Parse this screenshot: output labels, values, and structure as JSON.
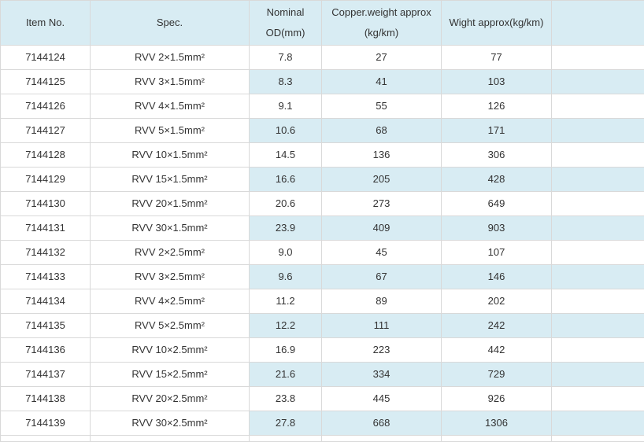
{
  "chart_data": {
    "type": "table",
    "columns": [
      {
        "id": "item_no",
        "line1": "Item No.",
        "line2": ""
      },
      {
        "id": "spec",
        "line1": "Spec.",
        "line2": ""
      },
      {
        "id": "nominal_od",
        "line1": "Nominal",
        "line2": "OD(mm)"
      },
      {
        "id": "copper_weight",
        "line1": "Copper.weight approx",
        "line2": "(kg/km)"
      },
      {
        "id": "weight",
        "line1": "Wight approx(kg/km)",
        "line2": ""
      },
      {
        "id": "blank",
        "line1": "",
        "line2": ""
      }
    ],
    "rows": [
      [
        "7144124",
        "RVV 2×1.5mm²",
        "7.8",
        "27",
        "77",
        ""
      ],
      [
        "7144125",
        "RVV 3×1.5mm²",
        "8.3",
        "41",
        "103",
        ""
      ],
      [
        "7144126",
        "RVV 4×1.5mm²",
        "9.1",
        "55",
        "126",
        ""
      ],
      [
        "7144127",
        "RVV 5×1.5mm²",
        "10.6",
        "68",
        "171",
        ""
      ],
      [
        "7144128",
        "RVV 10×1.5mm²",
        "14.5",
        "136",
        "306",
        ""
      ],
      [
        "7144129",
        "RVV 15×1.5mm²",
        "16.6",
        "205",
        "428",
        ""
      ],
      [
        "7144130",
        "RVV 20×1.5mm²",
        "20.6",
        "273",
        "649",
        ""
      ],
      [
        "7144131",
        "RVV 30×1.5mm²",
        "23.9",
        "409",
        "903",
        ""
      ],
      [
        "7144132",
        "RVV 2×2.5mm²",
        "9.0",
        "45",
        "107",
        ""
      ],
      [
        "7144133",
        "RVV 3×2.5mm²",
        "9.6",
        "67",
        "146",
        ""
      ],
      [
        "7144134",
        "RVV 4×2.5mm²",
        "11.2",
        "89",
        "202",
        ""
      ],
      [
        "7144135",
        "RVV 5×2.5mm²",
        "12.2",
        "111",
        "242",
        ""
      ],
      [
        "7144136",
        "RVV 10×2.5mm²",
        "16.9",
        "223",
        "442",
        ""
      ],
      [
        "7144137",
        "RVV 15×2.5mm²",
        "21.6",
        "334",
        "729",
        ""
      ],
      [
        "7144138",
        "RVV 20×2.5mm²",
        "23.8",
        "445",
        "926",
        ""
      ],
      [
        "7144139",
        "RVV 30×2.5mm²",
        "27.8",
        "668",
        "1306",
        ""
      ]
    ]
  },
  "colors": {
    "header_bg": "#d8ecf3",
    "alt_row_bg": "#d8ecf3",
    "border": "#d9d9d9",
    "text": "#333333"
  }
}
